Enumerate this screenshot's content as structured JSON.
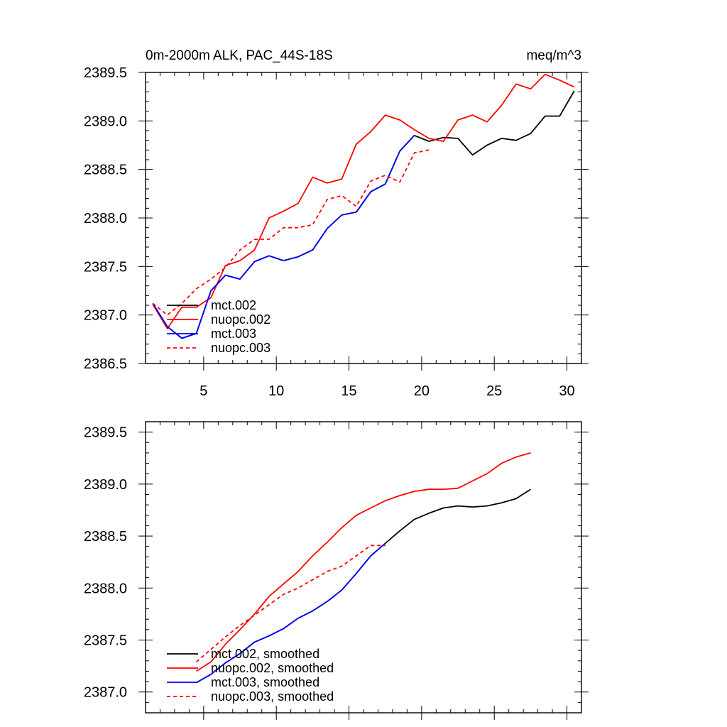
{
  "chart_data": [
    {
      "type": "line",
      "title": "0m-2000m ALK, PAC_44S-18S",
      "units": "meq/m^3",
      "xlabel": "",
      "ylabel": "",
      "xlim": [
        1,
        31
      ],
      "ylim": [
        2386.5,
        2389.5
      ],
      "xticks": [
        5,
        10,
        15,
        20,
        25,
        30
      ],
      "xtick_labels": [
        "5",
        "10",
        "15",
        "20",
        "25",
        "30"
      ],
      "yticks": [
        2386.5,
        2387.0,
        2387.5,
        2388.0,
        2388.5,
        2389.0,
        2389.5
      ],
      "ytick_labels": [
        "2386.5",
        "2387.0",
        "2387.5",
        "2388.0",
        "2388.5",
        "2389.0",
        "2389.5"
      ],
      "legend_position": "bottom-left",
      "series": [
        {
          "name": "mct.002",
          "color": "#000000",
          "dash": "solid",
          "x": [
            1.5,
            2.5,
            3.5,
            4.5,
            5.5,
            6.5,
            7.5,
            8.5,
            9.5,
            10.5,
            11.5,
            12.5,
            13.5,
            14.5,
            15.5,
            16.5,
            17.5,
            18.5,
            19.5,
            20.5,
            21.5,
            22.5,
            23.5,
            24.5,
            25.5,
            26.5,
            27.5,
            28.5,
            29.5,
            30.5
          ],
          "values": [
            2387.12,
            2386.88,
            2386.76,
            2386.81,
            2387.25,
            2387.41,
            2387.37,
            2387.55,
            2387.61,
            2387.56,
            2387.6,
            2387.67,
            2387.89,
            2388.03,
            2388.06,
            2388.27,
            2388.35,
            2388.69,
            2388.85,
            2388.79,
            2388.83,
            2388.82,
            2388.65,
            2388.75,
            2388.82,
            2388.8,
            2388.87,
            2389.05,
            2389.05,
            2389.31
          ]
        },
        {
          "name": "nuopc.002",
          "color": "#ff0000",
          "dash": "solid",
          "x": [
            1.5,
            2.5,
            3.5,
            4.5,
            5.5,
            6.5,
            7.5,
            8.5,
            9.5,
            10.5,
            11.5,
            12.5,
            13.5,
            14.5,
            15.5,
            16.5,
            17.5,
            18.5,
            19.5,
            20.5,
            21.5,
            22.5,
            23.5,
            24.5,
            25.5,
            26.5,
            27.5,
            28.5,
            29.5,
            30.5
          ],
          "values": [
            2387.11,
            2386.86,
            2387.08,
            2387.08,
            2387.18,
            2387.51,
            2387.56,
            2387.67,
            2388.0,
            2388.07,
            2388.15,
            2388.42,
            2388.36,
            2388.4,
            2388.76,
            2388.89,
            2389.06,
            2389.01,
            2388.91,
            2388.82,
            2388.79,
            2389.01,
            2389.06,
            2388.99,
            2389.16,
            2389.38,
            2389.33,
            2389.48,
            2389.42,
            2389.35
          ]
        },
        {
          "name": "mct.003",
          "color": "#0000ff",
          "dash": "solid",
          "x": [
            1.5,
            2.5,
            3.5,
            4.5,
            5.5,
            6.5,
            7.5,
            8.5,
            9.5,
            10.5,
            11.5,
            12.5,
            13.5,
            14.5,
            15.5,
            16.5,
            17.5,
            18.5,
            19.5
          ],
          "values": [
            2387.12,
            2386.88,
            2386.76,
            2386.81,
            2387.25,
            2387.41,
            2387.37,
            2387.55,
            2387.61,
            2387.56,
            2387.6,
            2387.67,
            2387.89,
            2388.03,
            2388.06,
            2388.27,
            2388.35,
            2388.69,
            2388.85
          ]
        },
        {
          "name": "nuopc.003",
          "color": "#ff0000",
          "dash": "dashed",
          "x": [
            1.5,
            2.5,
            3.5,
            4.5,
            5.5,
            6.5,
            7.5,
            8.5,
            9.5,
            10.5,
            11.5,
            12.5,
            13.5,
            14.5,
            15.5,
            16.5,
            17.5,
            18.5,
            19.5,
            20.5
          ],
          "values": [
            2387.12,
            2387.0,
            2387.12,
            2387.27,
            2387.37,
            2387.49,
            2387.67,
            2387.78,
            2387.78,
            2387.9,
            2387.9,
            2387.93,
            2388.19,
            2388.23,
            2388.12,
            2388.38,
            2388.44,
            2388.37,
            2388.67,
            2388.7
          ]
        }
      ]
    },
    {
      "type": "line",
      "title": "",
      "xlabel": "",
      "ylabel": "",
      "xlim": [
        1,
        31
      ],
      "ylim": [
        2386.8,
        2389.6
      ],
      "xticks": [
        5,
        10,
        15,
        20,
        25,
        30
      ],
      "xtick_labels": [],
      "yticks": [
        2387.0,
        2387.5,
        2388.0,
        2388.5,
        2389.0,
        2389.5
      ],
      "ytick_labels": [
        "2387.0",
        "2387.5",
        "2388.0",
        "2388.5",
        "2389.0",
        "2389.5"
      ],
      "legend_position": "bottom-left",
      "series": [
        {
          "name": "mct.002, smoothed",
          "color": "#000000",
          "dash": "solid",
          "x": [
            4.5,
            5.5,
            6.5,
            7.5,
            8.5,
            9.5,
            10.5,
            11.5,
            12.5,
            13.5,
            14.5,
            15.5,
            16.5,
            17.5,
            18.5,
            19.5,
            20.5,
            21.5,
            22.5,
            23.5,
            24.5,
            25.5,
            26.5,
            27.5
          ],
          "values": [
            2387.09,
            2387.17,
            2387.28,
            2387.37,
            2387.48,
            2387.54,
            2387.61,
            2387.71,
            2387.78,
            2387.87,
            2387.98,
            2388.14,
            2388.31,
            2388.43,
            2388.55,
            2388.66,
            2388.72,
            2388.77,
            2388.79,
            2388.78,
            2388.79,
            2388.82,
            2388.86,
            2388.95
          ]
        },
        {
          "name": "nuopc.002, smoothed",
          "color": "#ff0000",
          "dash": "solid",
          "x": [
            4.5,
            5.5,
            6.5,
            7.5,
            8.5,
            9.5,
            10.5,
            11.5,
            12.5,
            13.5,
            14.5,
            15.5,
            16.5,
            17.5,
            18.5,
            19.5,
            20.5,
            21.5,
            22.5,
            23.5,
            24.5,
            25.5,
            26.5,
            27.5
          ],
          "values": [
            2387.2,
            2387.29,
            2387.46,
            2387.6,
            2387.75,
            2387.92,
            2388.04,
            2388.16,
            2388.31,
            2388.44,
            2388.58,
            2388.7,
            2388.77,
            2388.84,
            2388.89,
            2388.93,
            2388.95,
            2388.95,
            2388.96,
            2389.03,
            2389.1,
            2389.2,
            2389.26,
            2389.3
          ]
        },
        {
          "name": "mct.003, smoothed",
          "color": "#0000ff",
          "dash": "solid",
          "x": [
            4.5,
            5.5,
            6.5,
            7.5,
            8.5,
            9.5,
            10.5,
            11.5,
            12.5,
            13.5,
            14.5,
            15.5,
            16.5,
            17.5
          ],
          "values": [
            2387.09,
            2387.17,
            2387.28,
            2387.37,
            2387.48,
            2387.54,
            2387.61,
            2387.71,
            2387.78,
            2387.87,
            2387.98,
            2388.14,
            2388.31,
            2388.43
          ]
        },
        {
          "name": "nuopc.003, smoothed",
          "color": "#ff0000",
          "dash": "dashed",
          "x": [
            4.5,
            5.5,
            6.5,
            7.5,
            8.5,
            9.5,
            10.5,
            11.5,
            12.5,
            13.5,
            14.5,
            15.5,
            16.5,
            17.5
          ],
          "values": [
            2387.29,
            2387.41,
            2387.53,
            2387.64,
            2387.74,
            2387.84,
            2387.94,
            2388.0,
            2388.08,
            2388.16,
            2388.21,
            2388.31,
            2388.41,
            2388.41
          ]
        }
      ]
    }
  ]
}
